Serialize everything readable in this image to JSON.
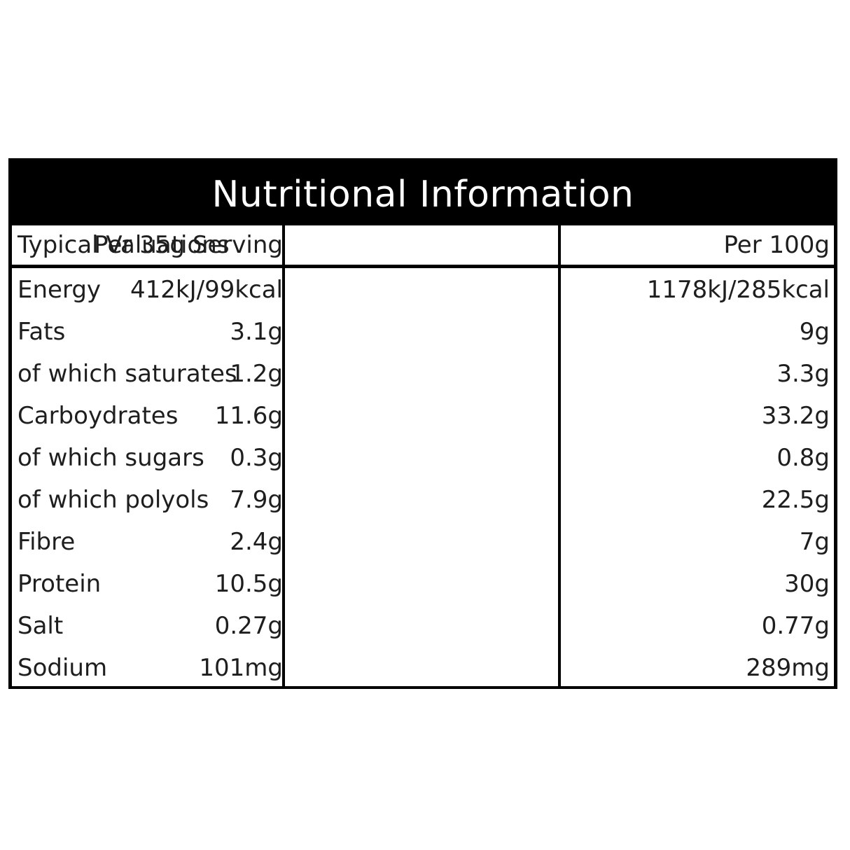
{
  "title": "Nutritional Information",
  "header": {
    "col1": "Typical Valuations",
    "col2": "Per 35g Serving",
    "col3": "Per 100g"
  },
  "rows": [
    {
      "label": "Energy",
      "serving": "412kJ/99kcal",
      "per100": "1178kJ/285kcal"
    },
    {
      "label": "Fats",
      "serving": "3.1g",
      "per100": "9g"
    },
    {
      "label": "of which saturates",
      "serving": "1.2g",
      "per100": "3.3g"
    },
    {
      "label": "Carboydrates",
      "serving": "11.6g",
      "per100": "33.2g"
    },
    {
      "label": "of which sugars",
      "serving": "0.3g",
      "per100": "0.8g"
    },
    {
      "label": "of which polyols",
      "serving": "7.9g",
      "per100": "22.5g"
    },
    {
      "label": "Fibre",
      "serving": "2.4g",
      "per100": "7g"
    },
    {
      "label": "Protein",
      "serving": "10.5g",
      "per100": "30g"
    },
    {
      "label": "Salt",
      "serving": "0.27g",
      "per100": "0.77g"
    },
    {
      "label": "Sodium",
      "serving": "101mg",
      "per100": "289mg"
    }
  ]
}
